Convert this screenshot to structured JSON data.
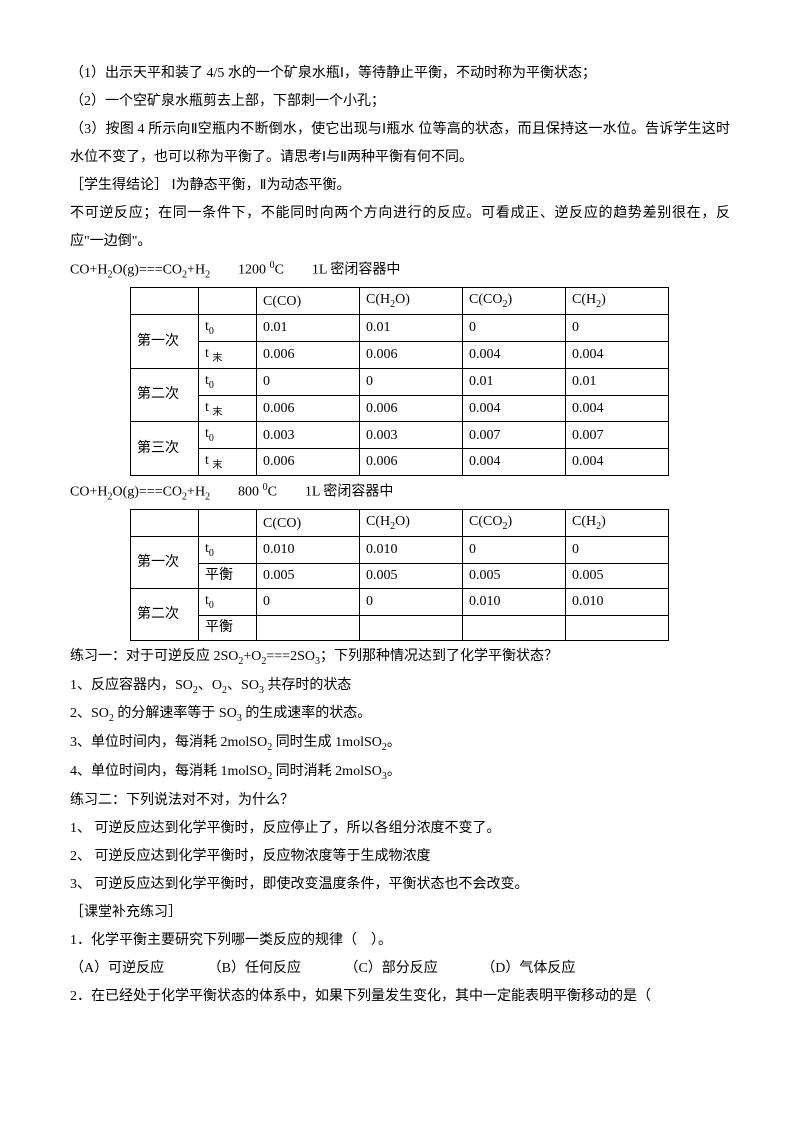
{
  "paras": {
    "p1": "（1）出示天平和装了 4/5 水的一个矿泉水瓶Ⅰ，等待静止平衡，不动时称为平衡状态；",
    "p2": "（2）一个空矿泉水瓶剪去上部，下部刺一个小孔；",
    "p3": "（3）按图 4 所示向Ⅱ空瓶内不断倒水，使它出现与Ⅰ瓶水 位等高的状态，而且保持这一水位。告诉学生这时水位不变了，也可以称为平衡了。请思考Ⅰ与Ⅱ两种平衡有何不同。",
    "p4": "［学生得结论］ Ⅰ为静态平衡，Ⅱ为动态平衡。",
    "p5": "不可逆反应；在同一条件下，不能同时向两个方向进行的反应。可看成正、逆反应的趋势差别很在，反应\"一边倒\"。",
    "eq1a": "CO+H",
    "eq1b": "O(g)===CO",
    "eq1c": "+H",
    "eq1d": "　　1200 ",
    "eq1e": "C　　1L 密闭容器中",
    "eq2a": "CO+H",
    "eq2b": "O(g)===CO",
    "eq2c": "+H",
    "eq2d": "　　800 ",
    "eq2e": "C　　1L 密闭容器中",
    "ex1": "练习一：对于可逆反应 2SO",
    "ex1b": "+O",
    "ex1c": "===2SO",
    "ex1d": "；下列那种情况达到了化学平衡状态？",
    "e11a": "1、反应容器内，SO",
    "e11b": "、O",
    "e11c": "、SO",
    "e11d": " 共存时的状态",
    "e12a": "2、SO",
    "e12b": " 的分解速率等于 SO",
    "e12c": " 的生成速率的状态。",
    "e13a": "3、单位时间内，每消耗 2molSO",
    "e13b": " 同时生成 1molSO",
    "e13c": "。",
    "e14a": "4、单位时间内，每消耗 1molSO",
    "e14b": " 同时消耗 2molSO",
    "e14c": "。",
    "ex2": "练习二：下列说法对不对，为什么？",
    "e21": "1、 可逆反应达到化学平衡时，反应停止了，所以各组分浓度不变了。",
    "e22": "2、 可逆反应达到化学平衡时，反应物浓度等于生成物浓度",
    "e23": "3、 可逆反应达到化学平衡时，即使改变温度条件，平衡状态也不会改变。",
    "supp": "［课堂补充练习］",
    "q1": "1．化学平衡主要研究下列哪一类反应的规律（　）。",
    "q1a": "（A）可逆反应",
    "q1b": "（B）任何反应",
    "q1c": "（C）部分反应",
    "q1d": "（D）气体反应",
    "q2": "2．在已经处于化学平衡状态的体系中，如果下列量发生变化，其中一定能表明平衡移动的是（"
  },
  "table1": {
    "h1": "C(CO)",
    "h2a": "C(H",
    "h2b": "O)",
    "h3a": "C(CO",
    "h3b": ")",
    "h4a": "C(H",
    "h4b": ")",
    "r1": "第一次",
    "r2": "第二次",
    "r3": "第三次",
    "t0": "t",
    "t0s": "0",
    "te": "t ",
    "tes": "末",
    "rows": [
      [
        "0.01",
        "0.01",
        "0",
        "0"
      ],
      [
        "0.006",
        "0.006",
        "0.004",
        "0.004"
      ],
      [
        "0",
        "0",
        "0.01",
        "0.01"
      ],
      [
        "0.006",
        "0.006",
        "0.004",
        "0.004"
      ],
      [
        "0.003",
        "0.003",
        "0.007",
        "0.007"
      ],
      [
        "0.006",
        "0.006",
        "0.004",
        "0.004"
      ]
    ]
  },
  "table2": {
    "h1": "C(CO)",
    "h2a": "C(H",
    "h2b": "O)",
    "h3a": "C(CO",
    "h3b": ")",
    "h4a": "C(H",
    "h4b": ")",
    "r1": "第一次",
    "r2": "第二次",
    "t0": "t",
    "t0s": "0",
    "pb": "平衡",
    "rows": [
      [
        "0.010",
        "0.010",
        "0",
        "0"
      ],
      [
        "0.005",
        "0.005",
        "0.005",
        "0.005"
      ],
      [
        "0",
        "0",
        "0.010",
        "0.010"
      ],
      [
        "",
        "",
        "",
        ""
      ]
    ]
  }
}
